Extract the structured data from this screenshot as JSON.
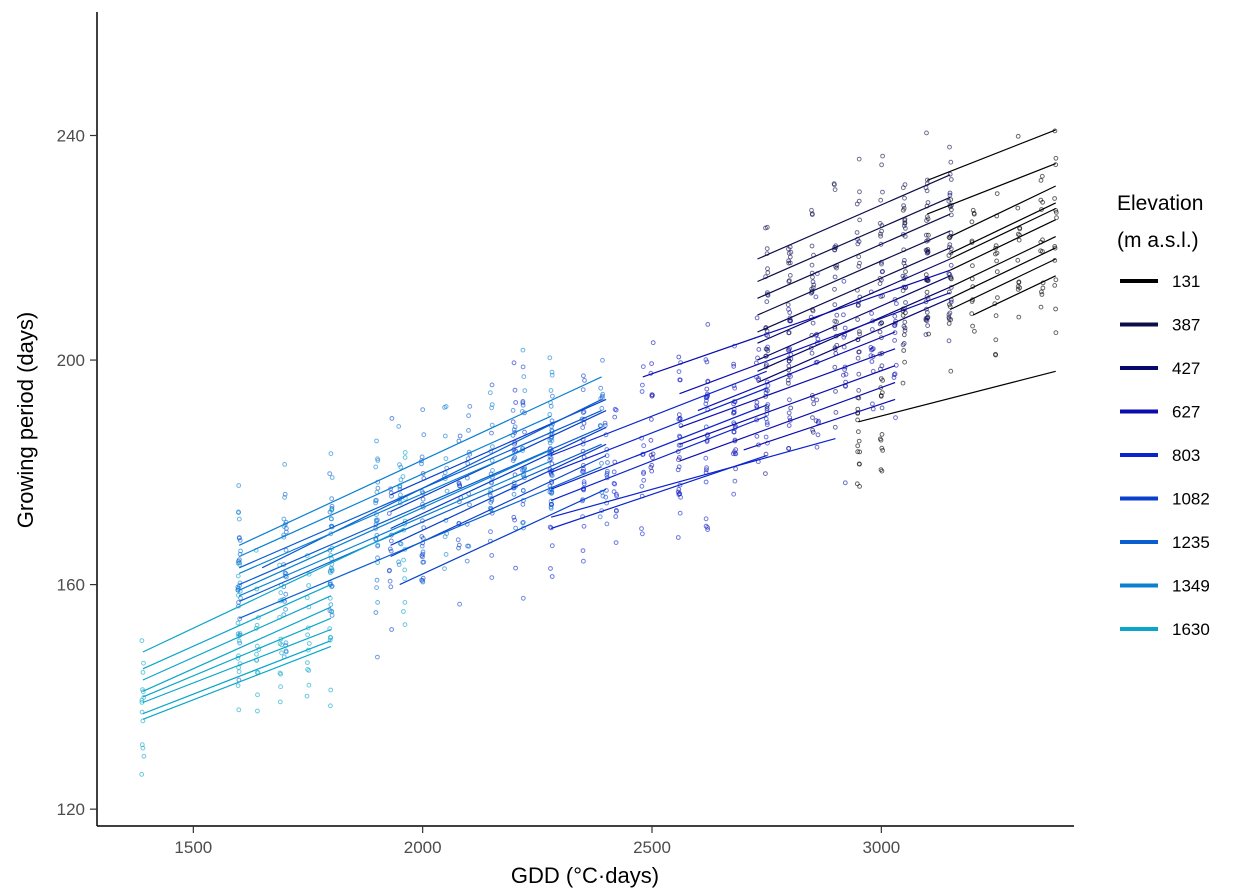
{
  "chart_data": {
    "type": "scatter",
    "title": "",
    "xlabel": "GDD (°C·days)",
    "ylabel": "Growing period (days)",
    "xlim": [
      1290,
      3420
    ],
    "ylim": [
      117,
      262
    ],
    "x_ticks": [
      1500,
      2000,
      2500,
      3000
    ],
    "y_ticks": [
      120,
      160,
      200,
      240
    ],
    "grid": false,
    "legend": {
      "title_line1": "Elevation",
      "title_line2": "(m a.s.l.)",
      "placement": "right",
      "entries": [
        {
          "label": "131",
          "color": "#000000"
        },
        {
          "label": "387",
          "color": "#0d0d4a"
        },
        {
          "label": "427",
          "color": "#07076e"
        },
        {
          "label": "627",
          "color": "#0c0cae"
        },
        {
          "label": "803",
          "color": "#0b22cc"
        },
        {
          "label": "1082",
          "color": "#0a3fcc"
        },
        {
          "label": "1235",
          "color": "#0a5ed0"
        },
        {
          "label": "1349",
          "color": "#0a80d2"
        },
        {
          "label": "1630",
          "color": "#0aa6c8"
        }
      ]
    },
    "series": [
      {
        "color": "#000000",
        "point_x": [
          2950,
          3000,
          3050,
          3100,
          3150,
          3200,
          3250,
          3300,
          3350,
          3380
        ],
        "lines": [
          {
            "x": [
              3100,
              3380
            ],
            "y": [
              232,
              241
            ]
          },
          {
            "x": [
              3100,
              3380
            ],
            "y": [
              226,
              235
            ]
          },
          {
            "x": [
              3150,
              3380
            ],
            "y": [
              222,
              231
            ]
          },
          {
            "x": [
              3150,
              3380
            ],
            "y": [
              219,
              228
            ]
          },
          {
            "x": [
              3150,
              3380
            ],
            "y": [
              218,
              227
            ]
          },
          {
            "x": [
              3150,
              3380
            ],
            "y": [
              216,
              225
            ]
          },
          {
            "x": [
              3150,
              3380
            ],
            "y": [
              213,
              222
            ]
          },
          {
            "x": [
              3150,
              3380
            ],
            "y": [
              211,
              220
            ]
          },
          {
            "x": [
              3150,
              3380
            ],
            "y": [
              209,
              218
            ]
          },
          {
            "x": [
              3200,
              3380
            ],
            "y": [
              208,
              215
            ]
          },
          {
            "x": [
              2950,
              3380
            ],
            "y": [
              189,
              198
            ]
          }
        ]
      },
      {
        "color": "#0d0d4a",
        "point_x": [
          2750,
          2800,
          2850,
          2900,
          2950,
          3000,
          3050,
          3100,
          3150
        ],
        "lines": [
          {
            "x": [
              2730,
              3150
            ],
            "y": [
              218,
              233
            ]
          },
          {
            "x": [
              2730,
              3150
            ],
            "y": [
              214,
              229
            ]
          },
          {
            "x": [
              2730,
              3150
            ],
            "y": [
              211,
              226
            ]
          },
          {
            "x": [
              2730,
              3150
            ],
            "y": [
              208,
              223
            ]
          },
          {
            "x": [
              2730,
              3150
            ],
            "y": [
              205,
              220
            ]
          }
        ]
      },
      {
        "color": "#07076e",
        "point_x": [
          2750,
          2800,
          2850,
          2900,
          2950,
          3000,
          3050,
          3100,
          3150
        ],
        "lines": [
          {
            "x": [
              2730,
              3150
            ],
            "y": [
              203,
              218
            ]
          },
          {
            "x": [
              2730,
              3150
            ],
            "y": [
              200,
              215
            ]
          },
          {
            "x": [
              2730,
              3150
            ],
            "y": [
              198,
              213
            ]
          },
          {
            "x": [
              2730,
              3150
            ],
            "y": [
              196,
              211
            ]
          }
        ]
      },
      {
        "color": "#0c0cae",
        "point_x": [
          2500,
          2560,
          2620,
          2680,
          2730,
          2800,
          2860,
          2920,
          2980,
          3030
        ],
        "lines": [
          {
            "x": [
              2480,
              3150
            ],
            "y": [
              197,
              216
            ]
          },
          {
            "x": [
              2560,
              3150
            ],
            "y": [
              194,
              212
            ]
          },
          {
            "x": [
              2600,
              3030
            ],
            "y": [
              191,
              205
            ]
          },
          {
            "x": [
              2560,
              3030
            ],
            "y": [
              188,
              202
            ]
          },
          {
            "x": [
              2560,
              3030
            ],
            "y": [
              185,
              199
            ]
          },
          {
            "x": [
              2560,
              3030
            ],
            "y": [
              182,
              196
            ]
          },
          {
            "x": [
              2700,
              3030
            ],
            "y": [
              184,
              193
            ]
          }
        ]
      },
      {
        "color": "#0b22cc",
        "point_x": [
          2200,
          2280,
          2350,
          2420,
          2480,
          2560,
          2620,
          2680,
          2750
        ],
        "lines": [
          {
            "x": [
              2280,
              2750
            ],
            "y": [
              183,
              198
            ]
          },
          {
            "x": [
              2280,
              2750
            ],
            "y": [
              180,
              195
            ]
          },
          {
            "x": [
              2280,
              2750
            ],
            "y": [
              177,
              192
            ]
          },
          {
            "x": [
              2280,
              2750
            ],
            "y": [
              175,
              190
            ]
          },
          {
            "x": [
              2280,
              2900
            ],
            "y": [
              172,
              186
            ]
          },
          {
            "x": [
              2280,
              2750
            ],
            "y": [
              170,
              183
            ]
          }
        ]
      },
      {
        "color": "#0a3fcc",
        "point_x": [
          1930,
          2000,
          2080,
          2150,
          2220,
          2280,
          2350,
          2400
        ],
        "lines": [
          {
            "x": [
              1930,
              2400
            ],
            "y": [
              173,
              191
            ]
          },
          {
            "x": [
              1930,
              2400
            ],
            "y": [
              170,
              188
            ]
          },
          {
            "x": [
              1930,
              2400
            ],
            "y": [
              167,
              185
            ]
          },
          {
            "x": [
              1930,
              2400
            ],
            "y": [
              165,
              183
            ]
          },
          {
            "x": [
              1950,
              2400
            ],
            "y": [
              160,
              177
            ]
          },
          {
            "x": [
              1930,
              2400
            ],
            "y": [
              176,
              193
            ]
          }
        ]
      },
      {
        "color": "#0a5ed0",
        "point_x": [
          1600,
          1700,
          1800,
          1900,
          2000,
          2100,
          2200,
          2280,
          2390
        ],
        "lines": [
          {
            "x": [
              1600,
              2390
            ],
            "y": [
              163,
              191
            ]
          },
          {
            "x": [
              1600,
              2390
            ],
            "y": [
              160,
              188
            ]
          },
          {
            "x": [
              1600,
              2390
            ],
            "y": [
              157,
              185
            ]
          },
          {
            "x": [
              1600,
              2390
            ],
            "y": [
              154,
              181
            ]
          },
          {
            "x": [
              1650,
              2390
            ],
            "y": [
              163,
              193
            ]
          }
        ]
      },
      {
        "color": "#0a80d2",
        "point_x": [
          1600,
          1700,
          1800,
          1900,
          1950,
          2050,
          2150,
          2220,
          2280
        ],
        "lines": [
          {
            "x": [
              1600,
              2390
            ],
            "y": [
              167,
              197
            ]
          },
          {
            "x": [
              1600,
              2280
            ],
            "y": [
              165,
              190
            ]
          },
          {
            "x": [
              1600,
              2220
            ],
            "y": [
              162,
              184
            ]
          },
          {
            "x": [
              1600,
              2280
            ],
            "y": [
              159,
              184
            ]
          },
          {
            "x": [
              1600,
              2280
            ],
            "y": [
              158,
              182
            ]
          }
        ]
      },
      {
        "color": "#0aa6c8",
        "point_x": [
          1390,
          1600,
          1640,
          1690,
          1750,
          1800,
          1960
        ],
        "lines": [
          {
            "x": [
              1390,
              1960
            ],
            "y": [
              148,
              170
            ]
          },
          {
            "x": [
              1390,
              1800
            ],
            "y": [
              145,
              160
            ]
          },
          {
            "x": [
              1390,
              1800
            ],
            "y": [
              143,
              158
            ]
          },
          {
            "x": [
              1390,
              1800
            ],
            "y": [
              141,
              156
            ]
          },
          {
            "x": [
              1390,
              1800
            ],
            "y": [
              140,
              154
            ]
          },
          {
            "x": [
              1390,
              1800
            ],
            "y": [
              139,
              152
            ]
          },
          {
            "x": [
              1390,
              1800
            ],
            "y": [
              137,
              150
            ]
          },
          {
            "x": [
              1390,
              1800
            ],
            "y": [
              136,
              149
            ]
          }
        ]
      }
    ]
  }
}
